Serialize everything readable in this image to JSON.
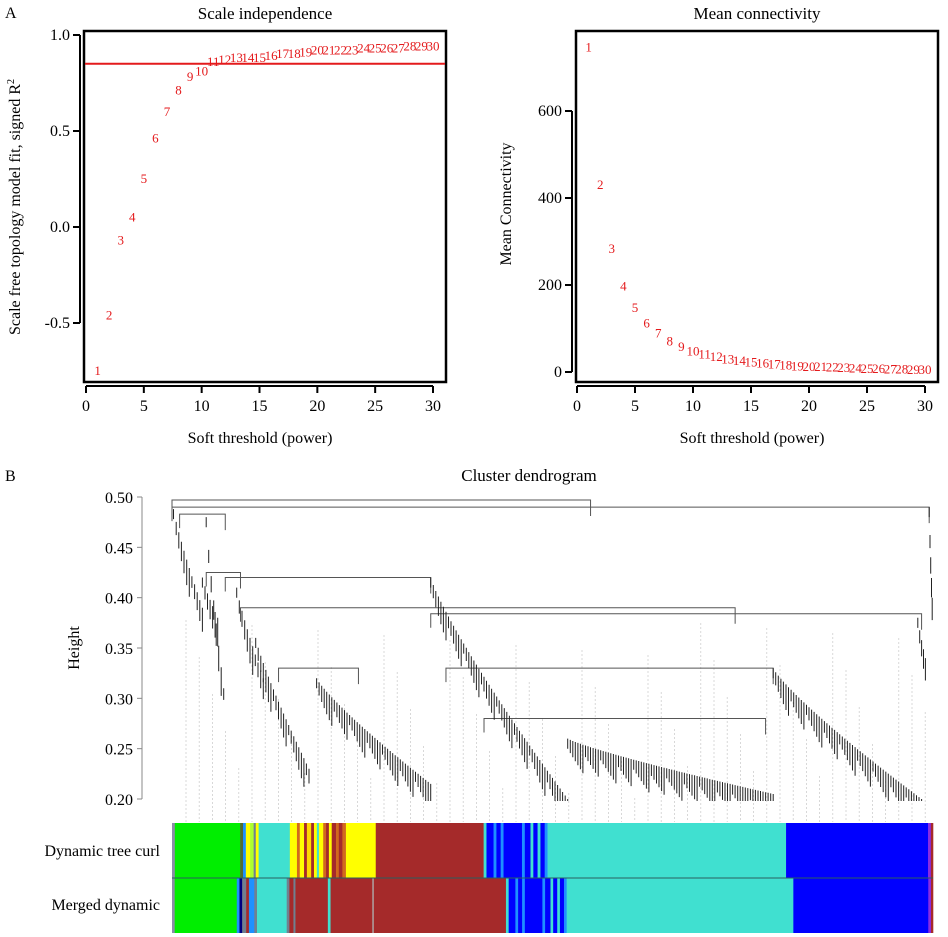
{
  "panels": {
    "a": "A",
    "b": "B"
  },
  "chart_data": [
    {
      "type": "scatter",
      "title": "Scale independence",
      "xlabel": "Soft threshold (power)",
      "ylabel": "Scale free topology model fit, signed R",
      "ylabel_superscript": "2",
      "xlim": [
        0,
        31
      ],
      "ylim": [
        -0.82,
        1.02
      ],
      "xticks": [
        0,
        5,
        10,
        15,
        20,
        25,
        30
      ],
      "xtick_labels": [
        "0",
        "5",
        "10",
        "15",
        "20",
        "25",
        "30"
      ],
      "yticks": [
        -0.5,
        0.0,
        0.5,
        1.0
      ],
      "ytick_labels": [
        "-0.5",
        "0.0",
        "0.5",
        "1.0"
      ],
      "marker": "text labels (power value)",
      "point_color": "#e41a1c",
      "threshold_line": {
        "y": 0.85,
        "color": "#e41a1c"
      },
      "x": [
        1,
        2,
        3,
        4,
        5,
        6,
        7,
        8,
        9,
        10,
        11,
        12,
        13,
        14,
        15,
        16,
        17,
        18,
        19,
        20,
        21,
        22,
        23,
        24,
        25,
        26,
        27,
        28,
        29,
        30
      ],
      "y": [
        -0.75,
        -0.46,
        -0.07,
        0.05,
        0.25,
        0.46,
        0.6,
        0.71,
        0.78,
        0.81,
        0.86,
        0.87,
        0.88,
        0.88,
        0.88,
        0.89,
        0.9,
        0.9,
        0.91,
        0.92,
        0.92,
        0.92,
        0.92,
        0.93,
        0.93,
        0.93,
        0.93,
        0.94,
        0.94,
        0.94
      ]
    },
    {
      "type": "scatter",
      "title": "Mean connectivity",
      "xlabel": "Soft threshold (power)",
      "ylabel": "Mean Connectivity",
      "xlim": [
        0,
        31
      ],
      "ylim": [
        -25,
        790
      ],
      "xticks": [
        0,
        5,
        10,
        15,
        20,
        25,
        30
      ],
      "xtick_labels": [
        "0",
        "5",
        "10",
        "15",
        "20",
        "25",
        "30"
      ],
      "yticks": [
        0,
        200,
        400,
        600
      ],
      "ytick_labels": [
        "0",
        "200",
        "400",
        "600"
      ],
      "marker": "text labels (power value)",
      "point_color": "#e41a1c",
      "x": [
        1,
        2,
        3,
        4,
        5,
        6,
        7,
        8,
        9,
        10,
        11,
        12,
        13,
        14,
        15,
        16,
        17,
        18,
        19,
        20,
        21,
        22,
        23,
        24,
        25,
        26,
        27,
        28,
        29,
        30
      ],
      "y": [
        746,
        430,
        283,
        197,
        147,
        112,
        88,
        70,
        57,
        47,
        40,
        34,
        29,
        25,
        22,
        19,
        17,
        15,
        13,
        12,
        11,
        10,
        9,
        8,
        7,
        7,
        6,
        6,
        5,
        5
      ]
    },
    {
      "type": "dendrogram",
      "title": "Cluster dendrogram",
      "ylabel": "Height",
      "ylim": [
        0.2,
        0.5
      ],
      "yticks": [
        0.2,
        0.25,
        0.3,
        0.35,
        0.4,
        0.45,
        0.5
      ],
      "ytick_labels": [
        "0.20",
        "0.25",
        "0.30",
        "0.35",
        "0.40",
        "0.45",
        "0.50"
      ],
      "module_rows": [
        {
          "label": "Dynamic tree curl",
          "segments": [
            {
              "color": "#8c8ca8",
              "frac": 0.004
            },
            {
              "color": "#00ee00",
              "frac": 0.092
            },
            {
              "color": "#556b2f",
              "frac": 0.004
            },
            {
              "color": "#1e90ff",
              "frac": 0.004
            },
            {
              "color": "#ffff00",
              "frac": 0.006
            },
            {
              "color": "#adff2f",
              "frac": 0.005
            },
            {
              "color": "#708090",
              "frac": 0.003
            },
            {
              "color": "#ffff00",
              "frac": 0.004
            },
            {
              "color": "#40e0d0",
              "frac": 0.044
            },
            {
              "color": "#ffff00",
              "frac": 0.01
            },
            {
              "color": "#d2691e",
              "frac": 0.004
            },
            {
              "color": "#ffff00",
              "frac": 0.006
            },
            {
              "color": "#a52a2a",
              "frac": 0.004
            },
            {
              "color": "#ffd700",
              "frac": 0.006
            },
            {
              "color": "#a52a2a",
              "frac": 0.004
            },
            {
              "color": "#ffff00",
              "frac": 0.004
            },
            {
              "color": "#40e0d0",
              "frac": 0.003
            },
            {
              "color": "#ffff00",
              "frac": 0.006
            },
            {
              "color": "#d2691e",
              "frac": 0.004
            },
            {
              "color": "#a52a2a",
              "frac": 0.004
            },
            {
              "color": "#ffff00",
              "frac": 0.004
            },
            {
              "color": "#a52a2a",
              "frac": 0.006
            },
            {
              "color": "#d2691e",
              "frac": 0.004
            },
            {
              "color": "#a52a2a",
              "frac": 0.005
            },
            {
              "color": "#d2691e",
              "frac": 0.005
            },
            {
              "color": "#ffff00",
              "frac": 0.042
            },
            {
              "color": "#a52a2a",
              "frac": 0.152
            },
            {
              "color": "#40e0d0",
              "frac": 0.004
            },
            {
              "color": "#0000ff",
              "frac": 0.01
            },
            {
              "color": "#1e90ff",
              "frac": 0.004
            },
            {
              "color": "#0000ff",
              "frac": 0.006
            },
            {
              "color": "#1e90ff",
              "frac": 0.004
            },
            {
              "color": "#0000ff",
              "frac": 0.026
            },
            {
              "color": "#1e90ff",
              "frac": 0.004
            },
            {
              "color": "#0000ff",
              "frac": 0.008
            },
            {
              "color": "#40e0d0",
              "frac": 0.004
            },
            {
              "color": "#0000ff",
              "frac": 0.006
            },
            {
              "color": "#40e0d0",
              "frac": 0.004
            },
            {
              "color": "#0000ff",
              "frac": 0.006
            },
            {
              "color": "#1e90ff",
              "frac": 0.004
            },
            {
              "color": "#40e0d0",
              "frac": 0.336
            },
            {
              "color": "#0000ff",
              "frac": 0.2
            },
            {
              "color": "#8a2be2",
              "frac": 0.004
            },
            {
              "color": "#a52a2a",
              "frac": 0.003
            }
          ]
        },
        {
          "label": "Merged dynamic",
          "segments": [
            {
              "color": "#8c8ca8",
              "frac": 0.004
            },
            {
              "color": "#00ee00",
              "frac": 0.092
            },
            {
              "color": "#1e90ff",
              "frac": 0.004
            },
            {
              "color": "#000080",
              "frac": 0.004
            },
            {
              "color": "#708090",
              "frac": 0.006
            },
            {
              "color": "#a52a2a",
              "frac": 0.004
            },
            {
              "color": "#1e90ff",
              "frac": 0.008
            },
            {
              "color": "#708090",
              "frac": 0.004
            },
            {
              "color": "#40e0d0",
              "frac": 0.044
            },
            {
              "color": "#708090",
              "frac": 0.004
            },
            {
              "color": "#a52a2a",
              "frac": 0.006
            },
            {
              "color": "#708090",
              "frac": 0.003
            },
            {
              "color": "#a52a2a",
              "frac": 0.048
            },
            {
              "color": "#40e0d0",
              "frac": 0.004
            },
            {
              "color": "#a52a2a",
              "frac": 0.062
            },
            {
              "color": "#b0b0b0",
              "frac": 0.002
            },
            {
              "color": "#a52a2a",
              "frac": 0.196
            },
            {
              "color": "#40e0d0",
              "frac": 0.004
            },
            {
              "color": "#0000ff",
              "frac": 0.01
            },
            {
              "color": "#1e90ff",
              "frac": 0.004
            },
            {
              "color": "#0000ff",
              "frac": 0.006
            },
            {
              "color": "#1e90ff",
              "frac": 0.004
            },
            {
              "color": "#0000ff",
              "frac": 0.026
            },
            {
              "color": "#1e90ff",
              "frac": 0.004
            },
            {
              "color": "#0000ff",
              "frac": 0.008
            },
            {
              "color": "#40e0d0",
              "frac": 0.004
            },
            {
              "color": "#0000ff",
              "frac": 0.006
            },
            {
              "color": "#40e0d0",
              "frac": 0.004
            },
            {
              "color": "#0000ff",
              "frac": 0.006
            },
            {
              "color": "#1e90ff",
              "frac": 0.004
            },
            {
              "color": "#40e0d0",
              "frac": 0.336
            },
            {
              "color": "#0000ff",
              "frac": 0.2
            },
            {
              "color": "#8a2be2",
              "frac": 0.004
            },
            {
              "color": "#a52a2a",
              "frac": 0.003
            }
          ]
        }
      ],
      "branches": [
        {
          "from": 0.0,
          "to": 0.55,
          "height": 0.497,
          "kind": "bracket"
        },
        {
          "from": 0.0,
          "to": 0.995,
          "height": 0.49,
          "kind": "bracket"
        },
        {
          "from": 0.01,
          "to": 0.07,
          "height": 0.483,
          "kind": "bracket"
        },
        {
          "from": 0.045,
          "to": 0.09,
          "height": 0.425,
          "kind": "bracket"
        },
        {
          "from": 0.07,
          "to": 0.34,
          "height": 0.42,
          "kind": "bracket"
        },
        {
          "from": 0.09,
          "to": 0.74,
          "height": 0.39,
          "kind": "bracket"
        },
        {
          "from": 0.34,
          "to": 0.985,
          "height": 0.384,
          "kind": "bracket"
        },
        {
          "from": 0.14,
          "to": 0.245,
          "height": 0.33,
          "kind": "bracket"
        },
        {
          "from": 0.36,
          "to": 0.79,
          "height": 0.33,
          "kind": "bracket"
        },
        {
          "from": 0.41,
          "to": 0.78,
          "height": 0.28,
          "kind": "bracket"
        }
      ]
    }
  ]
}
